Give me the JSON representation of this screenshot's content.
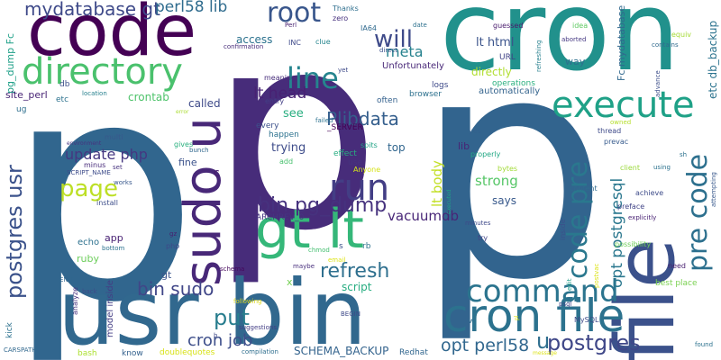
{
  "background": "#ffffff",
  "words": [
    {
      "text": "p",
      "color": "#31668e"
    },
    {
      "text": "p",
      "color": "#472c7a"
    },
    {
      "text": "p",
      "color": "#32648e"
    },
    {
      "text": "cron",
      "color": "#21918c"
    },
    {
      "text": "code",
      "color": "#440154"
    },
    {
      "text": "usr bin",
      "color": "#31688e"
    },
    {
      "text": "file",
      "color": "#3b518b"
    },
    {
      "text": "sudo u",
      "color": "#482878"
    },
    {
      "text": "gt lt",
      "color": "#35b779"
    },
    {
      "text": "cron file",
      "color": "#2c728e"
    },
    {
      "text": "directory",
      "color": "#4ac16d"
    },
    {
      "text": "execute",
      "color": "#1fa187"
    },
    {
      "text": "code pre",
      "color": "#2a788e"
    },
    {
      "text": "pre code",
      "color": "#2d708e"
    },
    {
      "text": "command",
      "color": "#2b748e"
    },
    {
      "text": "line",
      "color": "#25848e"
    },
    {
      "text": "root",
      "color": "#39568c"
    },
    {
      "text": "run",
      "color": "#433e85"
    },
    {
      "text": "will",
      "color": "#3e4a89"
    },
    {
      "text": "page",
      "color": "#bddf26"
    },
    {
      "text": "bin pg_dump",
      "color": "#46327e"
    },
    {
      "text": "refresh",
      "color": "#2e6f8e"
    },
    {
      "text": "postgres usr",
      "color": "#3b528b"
    },
    {
      "text": "postgres",
      "color": "#3f4788"
    },
    {
      "text": "put",
      "color": "#287d8e"
    },
    {
      "text": "bin sudo",
      "color": "#404688"
    },
    {
      "text": "mydatabase gt",
      "color": "#3e4989"
    },
    {
      "text": "perl58 lib",
      "color": "#2f6c8e"
    },
    {
      "text": "opt postgresql",
      "color": "#2a778e"
    },
    {
      "text": "opt perl58",
      "color": "#31678e"
    },
    {
      "text": "cron job",
      "color": "#3d4e8a"
    },
    {
      "text": "u",
      "color": "#2e6e8e"
    },
    {
      "text": "Plibdata",
      "color": "#355f8d"
    },
    {
      "text": "lt head",
      "color": "#482173"
    },
    {
      "text": "meta",
      "color": "#26828e"
    },
    {
      "text": "update php",
      "color": "#453781"
    },
    {
      "text": "vacuumdb",
      "color": "#482677"
    },
    {
      "text": "strong",
      "color": "#56c667"
    },
    {
      "text": "lt body",
      "color": "#c2df23"
    },
    {
      "text": "lt html",
      "color": "#3a538b"
    },
    {
      "text": "pg_dump Fc",
      "color": "#1fa088"
    },
    {
      "text": "etc db_backup",
      "color": "#2c738e"
    },
    {
      "text": "Fc mydatabase",
      "color": "#31688e"
    },
    {
      "text": "SCHEMA_BACKUP",
      "color": "#33638d"
    },
    {
      "text": "crontab",
      "color": "#4ec36b"
    },
    {
      "text": "site_perl",
      "color": "#482475"
    },
    {
      "text": "directly",
      "color": "#b0dd2f"
    },
    {
      "text": "script",
      "color": "#27ad81"
    },
    {
      "text": "trying",
      "color": "#3e4c8a"
    },
    {
      "text": "called",
      "color": "#3e4a89"
    },
    {
      "text": "see",
      "color": "#28ae80"
    },
    {
      "text": "says",
      "color": "#38598c"
    },
    {
      "text": "access",
      "color": "#2c728e"
    },
    {
      "text": "fine",
      "color": "#3b528b"
    },
    {
      "text": "gt",
      "color": "#3a548c"
    },
    {
      "text": "app",
      "color": "#482173"
    },
    {
      "text": "echo",
      "color": "#2d718e"
    },
    {
      "text": "ruby",
      "color": "#6ccd5a"
    },
    {
      "text": "way",
      "color": "#2d708e"
    },
    {
      "text": "top",
      "color": "#31668e"
    },
    {
      "text": "lib",
      "color": "#482475"
    },
    {
      "text": "URL",
      "color": "#414487"
    },
    {
      "text": "logs",
      "color": "#3e4a89"
    },
    {
      "text": "operations",
      "color": "#2ab07f"
    },
    {
      "text": "automatically",
      "color": "#33638d"
    },
    {
      "text": "Unfortunately",
      "color": "#482878"
    },
    {
      "text": "happen",
      "color": "#2c728e"
    },
    {
      "text": "every",
      "color": "#3c508b"
    },
    {
      "text": "entry",
      "color": "#423f85"
    },
    {
      "text": "meaning",
      "color": "#472d7b"
    },
    {
      "text": "_SERVER",
      "color": "#440154"
    },
    {
      "text": "browser",
      "color": "#2d718e"
    },
    {
      "text": "often",
      "color": "#34618d"
    },
    {
      "text": "Perl",
      "color": "#482071"
    },
    {
      "text": "zero",
      "color": "#46307e"
    },
    {
      "text": "Thanks",
      "color": "#2e6f8e"
    },
    {
      "text": "clue",
      "color": "#25858e"
    },
    {
      "text": "INC",
      "color": "#3e4989"
    },
    {
      "text": "confirmation",
      "color": "#472c7a"
    },
    {
      "text": "IA64",
      "color": "#306a8e"
    },
    {
      "text": "date",
      "color": "#2d718e"
    },
    {
      "text": "direct",
      "color": "#3b518b"
    },
    {
      "text": "guessed",
      "color": "#481a6c"
    },
    {
      "text": "refreshing",
      "color": "#27808e"
    },
    {
      "text": "idea",
      "color": "#5ec962"
    },
    {
      "text": "aborted",
      "color": "#453882"
    },
    {
      "text": "equiv",
      "color": "#a5db36"
    },
    {
      "text": "contains",
      "color": "#306a8e"
    },
    {
      "text": "advance",
      "color": "#3d4e8a"
    },
    {
      "text": "thread",
      "color": "#3e4a89"
    },
    {
      "text": "prevac",
      "color": "#375b8d"
    },
    {
      "text": "owned",
      "color": "#b5de2b"
    },
    {
      "text": "client",
      "color": "#9bd93c"
    },
    {
      "text": "using",
      "color": "#2c728e"
    },
    {
      "text": "sh",
      "color": "#2c718e"
    },
    {
      "text": "attempting",
      "color": "#38588c"
    },
    {
      "text": "achieve",
      "color": "#3e4c8a"
    },
    {
      "text": "preface",
      "color": "#414487"
    },
    {
      "text": "explicitly",
      "color": "#482173"
    },
    {
      "text": "possibility",
      "color": "#6ece58"
    },
    {
      "text": "content",
      "color": "#2f6b8e"
    },
    {
      "text": "inside",
      "color": "#3b518b"
    },
    {
      "text": "postvac",
      "color": "#dde318"
    },
    {
      "text": "edit",
      "color": "#1e9c89"
    },
    {
      "text": "best place",
      "color": "#7ad151"
    },
    {
      "text": "need",
      "color": "#481f70"
    },
    {
      "text": "found",
      "color": "#2c728e"
    },
    {
      "text": "MySQL",
      "color": "#3e4a89"
    },
    {
      "text": "message",
      "color": "#dde318"
    },
    {
      "text": "Redhat",
      "color": "#31668e"
    },
    {
      "text": "psql",
      "color": "#404588"
    },
    {
      "text": "w",
      "color": "#2e6e8e"
    },
    {
      "text": "pl",
      "color": "#dde318"
    },
    {
      "text": "executed",
      "color": "#20a386"
    },
    {
      "text": "minutes",
      "color": "#3e4989"
    },
    {
      "text": "bytes",
      "color": "#a2da37"
    },
    {
      "text": "try",
      "color": "#414487"
    },
    {
      "text": "properly",
      "color": "#22a884"
    },
    {
      "text": "yes",
      "color": "#34618d"
    },
    {
      "text": "effect",
      "color": "#27ad81"
    },
    {
      "text": "use",
      "color": "#46337f"
    },
    {
      "text": "spits",
      "color": "#20a386"
    },
    {
      "text": "Anyone",
      "color": "#d5e21a"
    },
    {
      "text": "ARCHREV_0",
      "color": "#453581"
    },
    {
      "text": "s",
      "color": "#3b528b"
    },
    {
      "text": "rb",
      "color": "#2d718e"
    },
    {
      "text": "email",
      "color": "#dde318"
    },
    {
      "text": "failed",
      "color": "#2c728e"
    },
    {
      "text": "add",
      "color": "#48c16e"
    },
    {
      "text": "chmod",
      "color": "#44bf70"
    },
    {
      "text": "x",
      "color": "#75d054"
    },
    {
      "text": "maybe",
      "color": "#472e7c"
    },
    {
      "text": "schema",
      "color": "#46085c"
    },
    {
      "text": "following",
      "color": "#ddd81d"
    },
    {
      "text": "suggestions",
      "color": "#433e85"
    },
    {
      "text": "BEGIN",
      "color": "#3e4a89"
    },
    {
      "text": "compilation",
      "color": "#2e6e8e"
    },
    {
      "text": "doublequotes",
      "color": "#d8e219"
    },
    {
      "text": "know",
      "color": "#34618d"
    },
    {
      "text": "bash",
      "color": "#ace030"
    },
    {
      "text": "back",
      "color": "#3e4a89"
    },
    {
      "text": "ENV",
      "color": "#31668e"
    },
    {
      "text": "analyze",
      "color": "#46307e"
    },
    {
      "text": "model inside",
      "color": "#433e85"
    },
    {
      "text": "kick",
      "color": "#2c718e"
    },
    {
      "text": "CARSPATH",
      "color": "#31688e"
    },
    {
      "text": "php",
      "color": "#3e4989"
    },
    {
      "text": "gz",
      "color": "#481d6f"
    },
    {
      "text": "install",
      "color": "#3d4e8a"
    },
    {
      "text": "bottom",
      "color": "#2c728e"
    },
    {
      "text": "works",
      "color": "#38588c"
    },
    {
      "text": "SCRIPT_NAME",
      "color": "#3e4c8a"
    },
    {
      "text": "minus",
      "color": "#472a7a"
    },
    {
      "text": "set",
      "color": "#46327e"
    },
    {
      "text": "gives",
      "color": "#2ab07f"
    },
    {
      "text": "bunch",
      "color": "#31688e"
    },
    {
      "text": "environment",
      "color": "#46337f"
    },
    {
      "text": "multi",
      "color": "#38588c"
    },
    {
      "text": "error",
      "color": "#aadc32"
    },
    {
      "text": "c",
      "color": "#481b6d"
    },
    {
      "text": "etc",
      "color": "#2c728e"
    },
    {
      "text": "ug",
      "color": "#2e6f8e"
    },
    {
      "text": "location",
      "color": "#27808e"
    },
    {
      "text": "db",
      "color": "#3c4f8a"
    },
    {
      "text": "yet",
      "color": "#3e4a89"
    },
    {
      "text": "b",
      "color": "#3e4989"
    }
  ]
}
